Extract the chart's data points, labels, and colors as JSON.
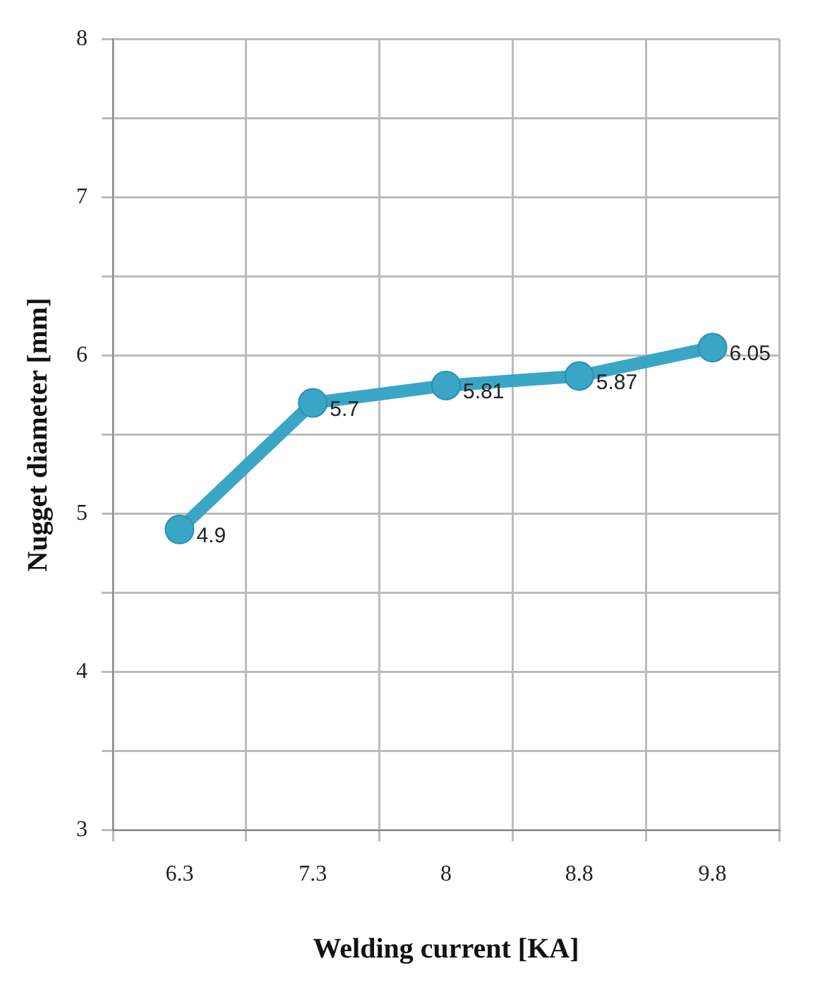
{
  "chart_data": {
    "type": "line",
    "xlabel": "Welding current [KA]",
    "ylabel": "Nugget diameter [mm]",
    "categories": [
      "6.3",
      "7.3",
      "8",
      "8.8",
      "9.8"
    ],
    "series": [
      {
        "color": "#3aa6c6",
        "values": [
          4.9,
          5.7,
          5.81,
          5.87,
          6.05
        ]
      }
    ],
    "ylim": [
      3,
      8
    ],
    "yticks": [
      3,
      {
        "value": 3.5,
        "label": null
      },
      4,
      {
        "value": 4.5,
        "label": null
      },
      5,
      {
        "value": 5.5,
        "label": null
      },
      6,
      {
        "value": 6.5,
        "label": null
      },
      7,
      {
        "value": 7.5,
        "label": null
      },
      8
    ],
    "grid": true,
    "legend": false,
    "marker": "circle",
    "line_style": "solid",
    "data_labels": true
  }
}
